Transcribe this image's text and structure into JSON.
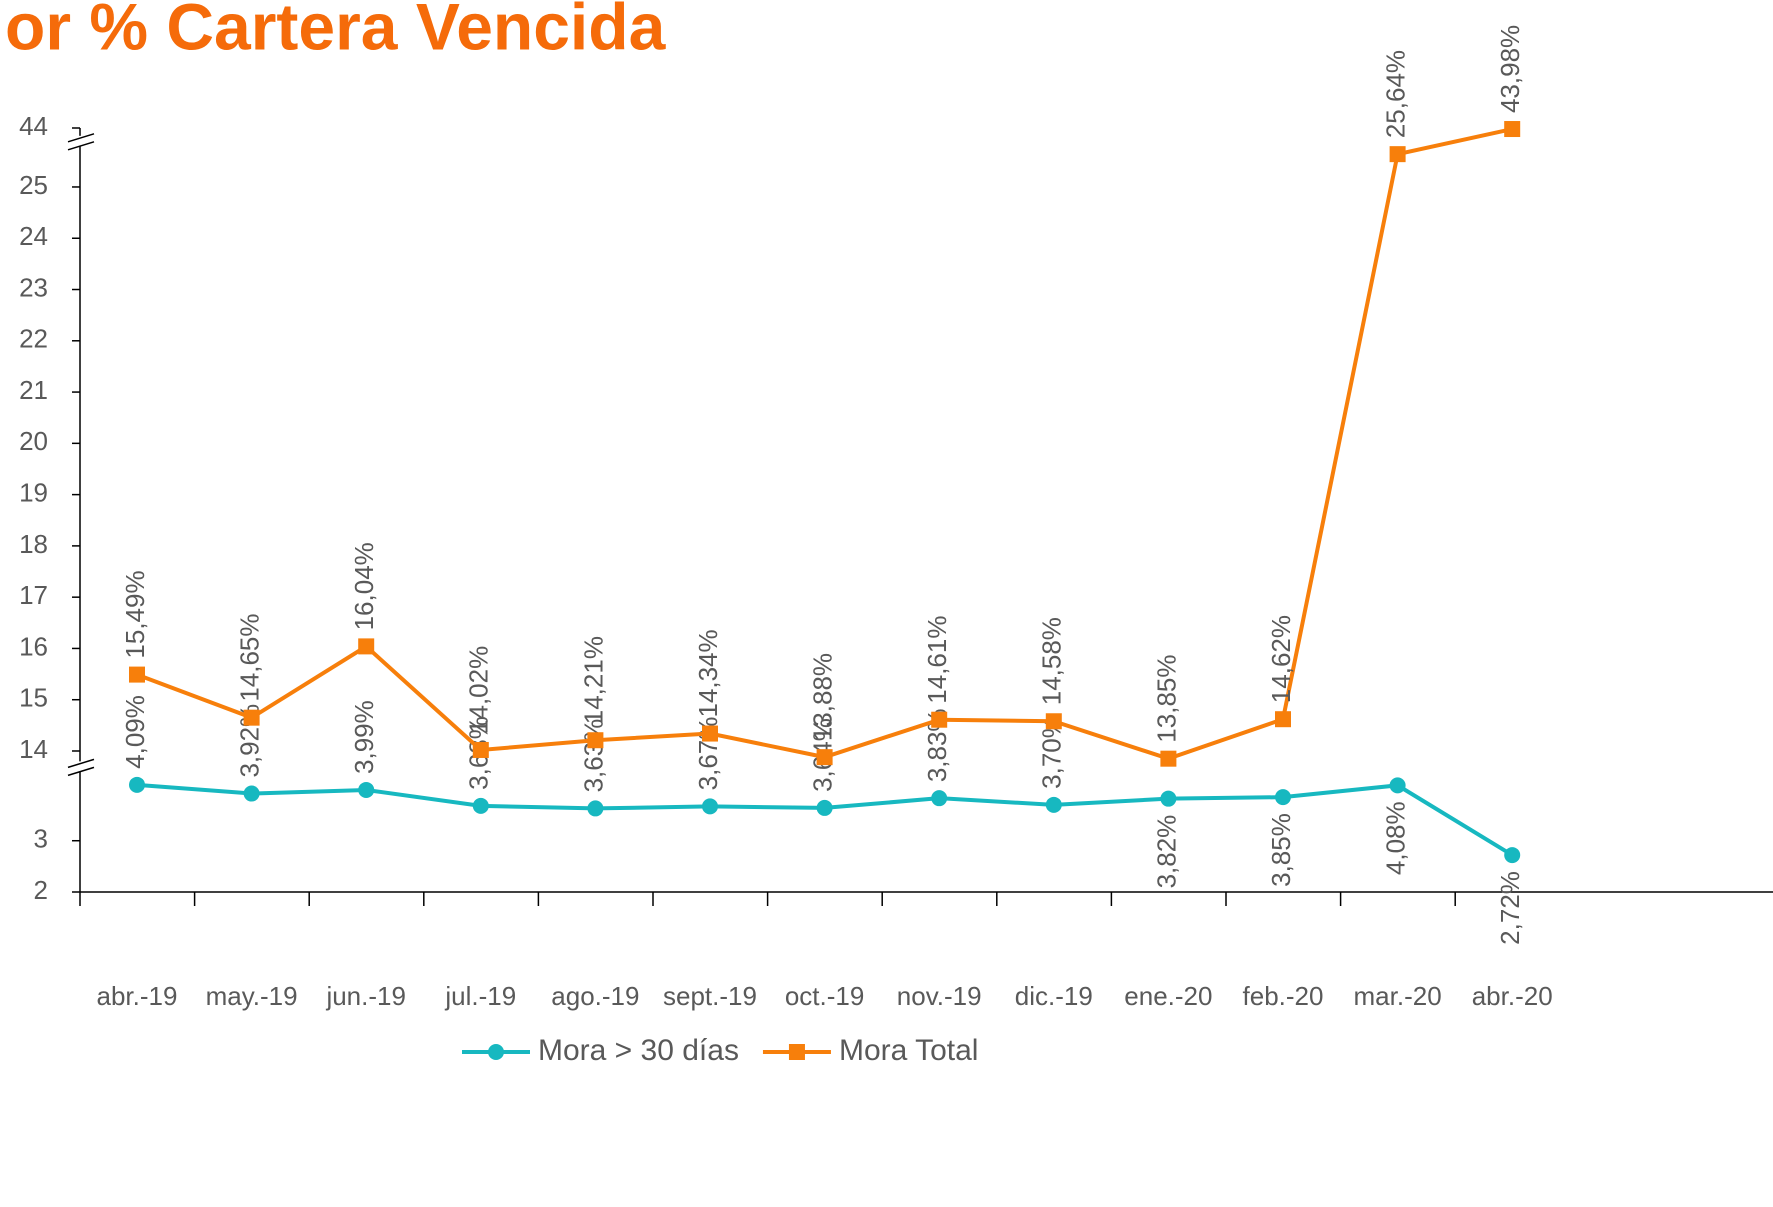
{
  "chart_data": {
    "type": "line",
    "title": "or % Cartera Vencida",
    "categories": [
      "abr.-19",
      "may.-19",
      "jun.-19",
      "jul.-19",
      "ago.-19",
      "sept.-19",
      "oct.-19",
      "nov.-19",
      "dic.-19",
      "ene.-20",
      "feb.-20",
      "mar.-20",
      "abr.-20"
    ],
    "series": [
      {
        "name": "Mora > 30 días",
        "color": "#17b8c0",
        "marker": "circle",
        "values": [
          4.09,
          3.92,
          3.99,
          3.68,
          3.63,
          3.67,
          3.64,
          3.83,
          3.7,
          3.82,
          3.85,
          4.08,
          2.72
        ],
        "value_labels": [
          "4,09%",
          "3,92%",
          "3,99%",
          "3,68%",
          "3,63%",
          "3,67%",
          "3,64%",
          "3,83%",
          "3,70%",
          "3,82%",
          "3,85%",
          "4,08%",
          "2,72%"
        ]
      },
      {
        "name": "Mora Total",
        "color": "#f77f0b",
        "marker": "square",
        "values": [
          15.49,
          14.65,
          16.04,
          14.02,
          14.21,
          14.34,
          13.88,
          14.61,
          14.58,
          13.85,
          14.62,
          25.64,
          43.98
        ],
        "value_labels": [
          "15,49%",
          "14,65%",
          "16,04%",
          "14,02%",
          "14,21%",
          "14,34%",
          "13,88%",
          "14,61%",
          "14,58%",
          "13,85%",
          "14,62%",
          "25,64%",
          "43,98%"
        ]
      }
    ],
    "ylim": [
      2,
      44
    ],
    "yticks": [
      2,
      3,
      14,
      15,
      16,
      17,
      18,
      19,
      20,
      21,
      22,
      23,
      24,
      25,
      44
    ],
    "axis_breaks": [
      [
        4.45,
        13.7
      ],
      [
        25.9,
        43.75
      ]
    ],
    "legend": "bottom"
  }
}
